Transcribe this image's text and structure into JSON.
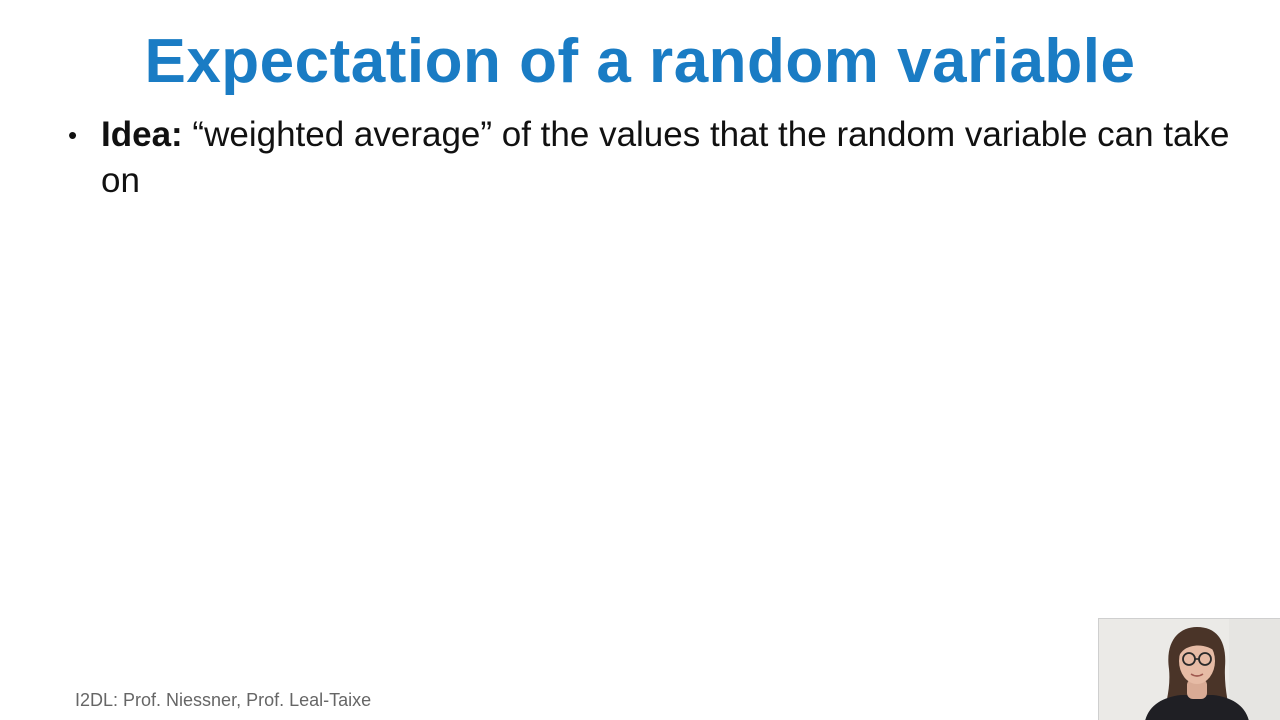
{
  "slide": {
    "title": "Expectation of a random variable",
    "bullets": [
      {
        "marker": "•",
        "lead": "Idea:",
        "text": " “weighted average” of the values that the random variable can take on"
      }
    ],
    "footer": "I2DL: Prof. Niessner, Prof. Leal-Taixe"
  },
  "colors": {
    "title": "#1a7cc4",
    "body_text": "#111111",
    "footer_text": "#666666",
    "background": "#ffffff"
  },
  "webcam": {
    "icon": "presenter-video-feed"
  }
}
